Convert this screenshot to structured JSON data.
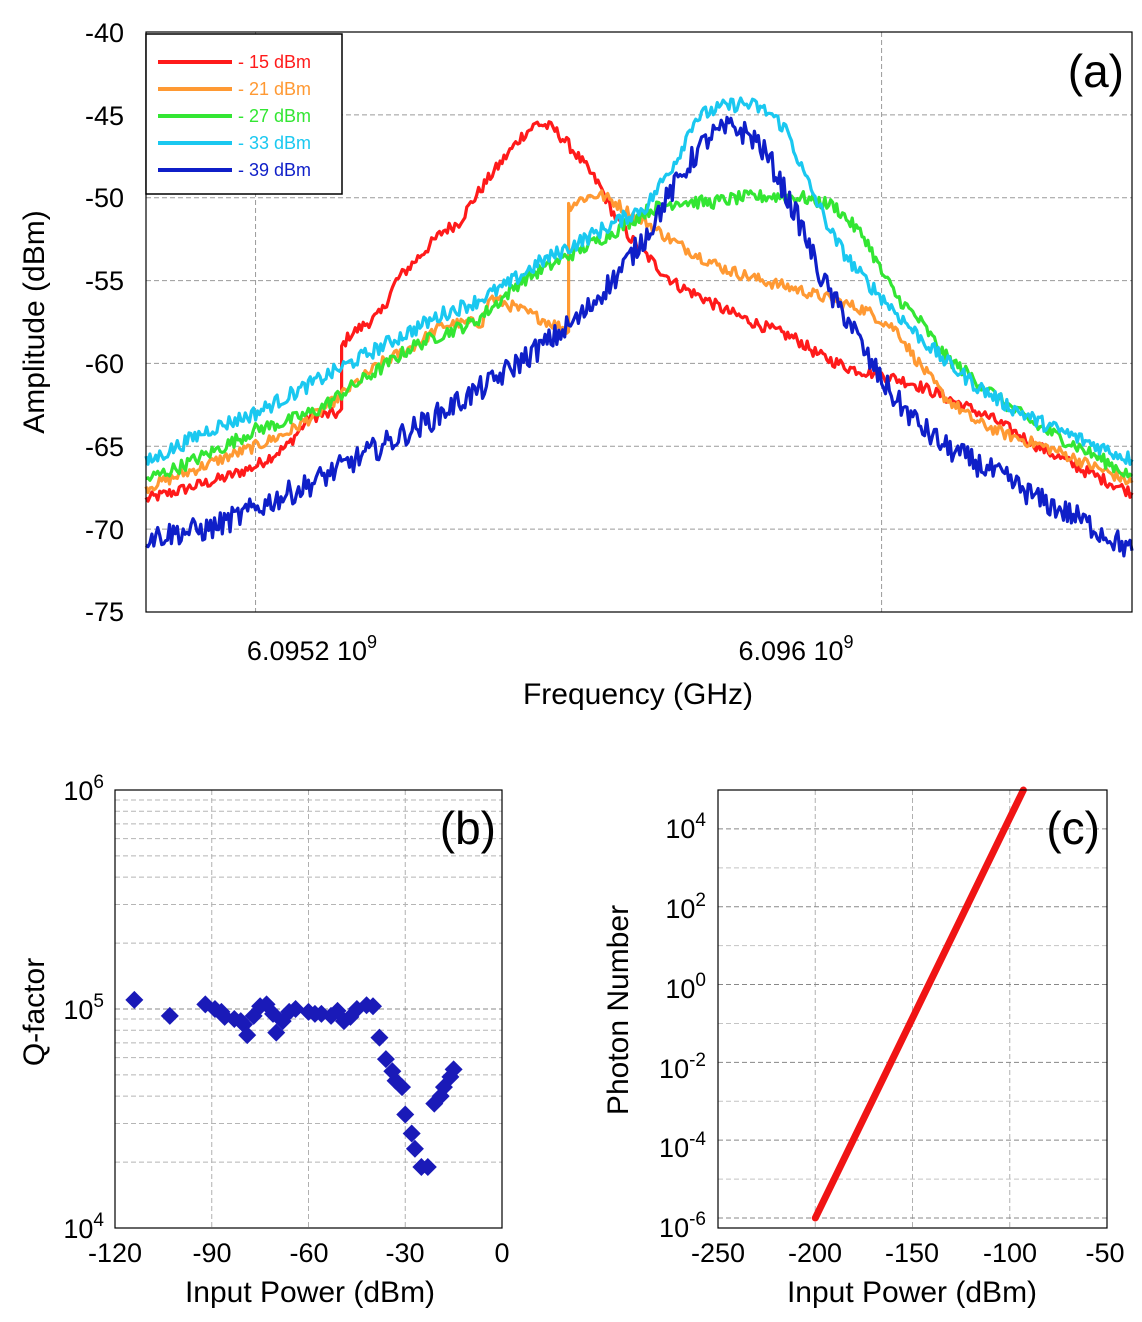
{
  "chart_data": [
    {
      "id": "a",
      "type": "line",
      "panel_label": "(a)",
      "xlabel": "Frequency (GHz)",
      "ylabel": "Amplitude (dBm)",
      "xlim": [
        6.09506,
        6.09632
      ],
      "ylim": [
        -75,
        -40
      ],
      "yticks": [
        -40,
        -45,
        -50,
        -55,
        -60,
        -65,
        -70,
        -75
      ],
      "ytick_labels": [
        "-40",
        "-45",
        "-50",
        "-55",
        "-60",
        "-65",
        "-70",
        "-75"
      ],
      "xticks": [
        {
          "value": 6.0952,
          "label": "6.0952 10",
          "exp": "9"
        },
        {
          "value": 6.096,
          "label": "6.096 10",
          "exp": "9"
        }
      ],
      "legend_position": "top-left",
      "series": [
        {
          "name": "- 15 dBm",
          "color": "#ff1a1a",
          "points": [
            [
              6.09506,
              -68.2
            ],
            [
              6.0951,
              -67.7
            ],
            [
              6.09516,
              -66.9
            ],
            [
              6.0952,
              -66.2
            ],
            [
              6.09524,
              -65
            ],
            [
              6.09527,
              -63.2
            ],
            [
              6.09531,
              -63
            ],
            [
              6.09531,
              -59
            ],
            [
              6.09532,
              -58.3
            ],
            [
              6.09536,
              -57
            ],
            [
              6.09538,
              -55
            ],
            [
              6.09541,
              -53.5
            ],
            [
              6.09544,
              -52
            ],
            [
              6.09546,
              -51.5
            ],
            [
              6.09548,
              -50
            ],
            [
              6.0955,
              -48.7
            ],
            [
              6.09552,
              -47.5
            ],
            [
              6.09554,
              -46.3
            ],
            [
              6.09556,
              -45.5
            ],
            [
              6.09558,
              -45.8
            ],
            [
              6.0956,
              -46.8
            ],
            [
              6.09562,
              -48
            ],
            [
              6.09564,
              -49.3
            ],
            [
              6.09566,
              -51.2
            ],
            [
              6.09568,
              -52.5
            ],
            [
              6.0957,
              -53.5
            ],
            [
              6.09572,
              -54.5
            ],
            [
              6.09574,
              -55.3
            ],
            [
              6.09577,
              -56
            ],
            [
              6.0958,
              -56.8
            ],
            [
              6.09584,
              -57.6
            ],
            [
              6.09589,
              -58.5
            ],
            [
              6.09592,
              -59.5
            ],
            [
              6.09596,
              -60.3
            ],
            [
              6.096,
              -60.7
            ],
            [
              6.09604,
              -61.2
            ],
            [
              6.09608,
              -62
            ],
            [
              6.09614,
              -63.3
            ],
            [
              6.0962,
              -65
            ],
            [
              6.09626,
              -66.5
            ],
            [
              6.09632,
              -67.8
            ]
          ]
        },
        {
          "name": "- 21 dBm",
          "color": "#ff9933",
          "points": [
            [
              6.09506,
              -67.5
            ],
            [
              6.0951,
              -66.8
            ],
            [
              6.09516,
              -65.7
            ],
            [
              6.0952,
              -65
            ],
            [
              6.09524,
              -64.2
            ],
            [
              6.09528,
              -63
            ],
            [
              6.09532,
              -61.5
            ],
            [
              6.09536,
              -60
            ],
            [
              6.0954,
              -59
            ],
            [
              6.09544,
              -57.7
            ],
            [
              6.09549,
              -57.5
            ],
            [
              6.0955,
              -56
            ],
            [
              6.0956,
              -58
            ],
            [
              6.0956,
              -50.5
            ],
            [
              6.09562,
              -50
            ],
            [
              6.09564,
              -49.8
            ],
            [
              6.09566,
              -50.3
            ],
            [
              6.09568,
              -51
            ],
            [
              6.0957,
              -51.5
            ],
            [
              6.09572,
              -52.2
            ],
            [
              6.09574,
              -52.8
            ],
            [
              6.09577,
              -53.6
            ],
            [
              6.0958,
              -54.3
            ],
            [
              6.09584,
              -54.9
            ],
            [
              6.09589,
              -55.5
            ],
            [
              6.09594,
              -56.2
            ],
            [
              6.09598,
              -56.8
            ],
            [
              6.09602,
              -58
            ],
            [
              6.09604,
              -59.5
            ],
            [
              6.09608,
              -62
            ],
            [
              6.09612,
              -63.5
            ],
            [
              6.09616,
              -64.3
            ],
            [
              6.09622,
              -65.2
            ],
            [
              6.09627,
              -66.2
            ],
            [
              6.09632,
              -67.2
            ]
          ]
        },
        {
          "name": "- 27 dBm",
          "color": "#33e633",
          "points": [
            [
              6.09506,
              -67
            ],
            [
              6.0951,
              -66.3
            ],
            [
              6.09516,
              -65
            ],
            [
              6.0952,
              -64
            ],
            [
              6.09524,
              -63.5
            ],
            [
              6.09528,
              -62.8
            ],
            [
              6.09532,
              -61.5
            ],
            [
              6.09536,
              -60.3
            ],
            [
              6.0954,
              -59
            ],
            [
              6.09544,
              -58.2
            ],
            [
              6.09548,
              -57.5
            ],
            [
              6.09551,
              -56.3
            ],
            [
              6.09554,
              -55
            ],
            [
              6.09558,
              -54
            ],
            [
              6.09562,
              -53
            ],
            [
              6.09566,
              -52
            ],
            [
              6.0957,
              -50.8
            ],
            [
              6.09574,
              -50.2
            ],
            [
              6.09578,
              -50.3
            ],
            [
              6.09582,
              -50
            ],
            [
              6.09586,
              -49.9
            ],
            [
              6.0959,
              -50
            ],
            [
              6.09594,
              -50.5
            ],
            [
              6.09596,
              -51.5
            ],
            [
              6.09598,
              -52.5
            ],
            [
              6.096,
              -54.5
            ],
            [
              6.09602,
              -56
            ],
            [
              6.09605,
              -57.5
            ],
            [
              6.09608,
              -59.5
            ],
            [
              6.09612,
              -61
            ],
            [
              6.09616,
              -62.5
            ],
            [
              6.0962,
              -63.8
            ],
            [
              6.09625,
              -65
            ],
            [
              6.09632,
              -66.8
            ]
          ]
        },
        {
          "name": "- 33 dBm",
          "color": "#1ac8f0",
          "points": [
            [
              6.09506,
              -66
            ],
            [
              6.0951,
              -65
            ],
            [
              6.09514,
              -64
            ],
            [
              6.0952,
              -63
            ],
            [
              6.09524,
              -62
            ],
            [
              6.09528,
              -61
            ],
            [
              6.09532,
              -60
            ],
            [
              6.09536,
              -59
            ],
            [
              6.0954,
              -58
            ],
            [
              6.09544,
              -57
            ],
            [
              6.09548,
              -56.3
            ],
            [
              6.09552,
              -55.3
            ],
            [
              6.09556,
              -54
            ],
            [
              6.0956,
              -53
            ],
            [
              6.09564,
              -52
            ],
            [
              6.09568,
              -51
            ],
            [
              6.0957,
              -50.5
            ],
            [
              6.09572,
              -49
            ],
            [
              6.09574,
              -47.5
            ],
            [
              6.09576,
              -45.3
            ],
            [
              6.09578,
              -44.8
            ],
            [
              6.0958,
              -44.5
            ],
            [
              6.09582,
              -44.3
            ],
            [
              6.09584,
              -44.5
            ],
            [
              6.09586,
              -45
            ],
            [
              6.09588,
              -46
            ],
            [
              6.0959,
              -48.5
            ],
            [
              6.09592,
              -50.5
            ],
            [
              6.09594,
              -52.5
            ],
            [
              6.09597,
              -54.5
            ],
            [
              6.096,
              -56
            ],
            [
              6.09604,
              -58
            ],
            [
              6.09608,
              -59.8
            ],
            [
              6.09612,
              -61.3
            ],
            [
              6.09616,
              -62.5
            ],
            [
              6.0962,
              -63.5
            ],
            [
              6.09625,
              -64.5
            ],
            [
              6.09632,
              -65.8
            ]
          ]
        },
        {
          "name": "- 39 dBm",
          "color": "#0f1fc8",
          "points": [
            [
              6.09506,
              -70.5
            ],
            [
              6.0951,
              -70.2
            ],
            [
              6.09514,
              -70
            ],
            [
              6.09518,
              -69.2
            ],
            [
              6.09522,
              -68.3
            ],
            [
              6.09526,
              -67.5
            ],
            [
              6.0953,
              -66.5
            ],
            [
              6.09534,
              -65.5
            ],
            [
              6.09538,
              -64.5
            ],
            [
              6.09542,
              -63.5
            ],
            [
              6.09546,
              -62.3
            ],
            [
              6.0955,
              -61.2
            ],
            [
              6.09554,
              -59.8
            ],
            [
              6.09558,
              -58.5
            ],
            [
              6.09562,
              -57
            ],
            [
              6.09564,
              -55.8
            ],
            [
              6.09566,
              -54.8
            ],
            [
              6.09568,
              -53.5
            ],
            [
              6.0957,
              -52.2
            ],
            [
              6.09572,
              -50.5
            ],
            [
              6.09574,
              -49
            ],
            [
              6.09576,
              -47.5
            ],
            [
              6.09578,
              -46.3
            ],
            [
              6.09581,
              -45.7
            ],
            [
              6.09584,
              -46.5
            ],
            [
              6.09586,
              -48
            ],
            [
              6.09588,
              -50
            ],
            [
              6.0959,
              -52
            ],
            [
              6.09592,
              -54.5
            ],
            [
              6.09594,
              -56.3
            ],
            [
              6.09596,
              -57.5
            ],
            [
              6.09598,
              -59.5
            ],
            [
              6.096,
              -61
            ],
            [
              6.09602,
              -62.3
            ],
            [
              6.09605,
              -63.8
            ],
            [
              6.09608,
              -65
            ],
            [
              6.09612,
              -66
            ],
            [
              6.09616,
              -67
            ],
            [
              6.0962,
              -68.2
            ],
            [
              6.09625,
              -69.3
            ],
            [
              6.09632,
              -71.3
            ]
          ]
        }
      ]
    },
    {
      "id": "b",
      "type": "scatter",
      "panel_label": "(b)",
      "xlabel": "Input Power (dBm)",
      "ylabel": "Q-factor",
      "xlim": [
        -120,
        0
      ],
      "xticks": [
        -120,
        -90,
        -60,
        -30,
        0
      ],
      "xtick_labels": [
        "-120",
        "-90",
        "-60",
        "-30",
        "0"
      ],
      "ylim": [
        10000,
        1000000
      ],
      "yscale": "log",
      "ytick_labels": [
        {
          "value": 1000000,
          "base": "10",
          "exp": "6"
        },
        {
          "value": 100000,
          "base": "10",
          "exp": "5"
        },
        {
          "value": 10000,
          "base": "10",
          "exp": "4"
        }
      ],
      "marker_color": "#1a1ab8",
      "points": [
        [
          -114,
          110000
        ],
        [
          -103,
          93000
        ],
        [
          -92,
          105000
        ],
        [
          -89,
          100000
        ],
        [
          -87,
          97000
        ],
        [
          -86,
          92000
        ],
        [
          -83,
          90000
        ],
        [
          -81,
          88000
        ],
        [
          -80,
          85000
        ],
        [
          -79,
          76000
        ],
        [
          -77,
          93000
        ],
        [
          -75,
          103000
        ],
        [
          -73,
          105000
        ],
        [
          -71,
          95000
        ],
        [
          -70,
          78000
        ],
        [
          -68,
          88000
        ],
        [
          -66,
          97000
        ],
        [
          -64,
          100000
        ],
        [
          -60,
          97000
        ],
        [
          -58,
          95000
        ],
        [
          -56,
          95000
        ],
        [
          -53,
          93000
        ],
        [
          -51,
          98000
        ],
        [
          -49,
          88000
        ],
        [
          -47,
          92000
        ],
        [
          -45,
          100000
        ],
        [
          -42,
          104000
        ],
        [
          -40,
          103000
        ],
        [
          -38,
          74000
        ],
        [
          -36,
          59000
        ],
        [
          -34,
          52000
        ],
        [
          -33,
          47000
        ],
        [
          -31,
          44000
        ],
        [
          -30,
          33000
        ],
        [
          -28,
          27000
        ],
        [
          -27,
          23000
        ],
        [
          -25,
          19000
        ],
        [
          -23,
          19000
        ],
        [
          -21,
          37000
        ],
        [
          -19,
          40000
        ],
        [
          -18,
          44000
        ],
        [
          -16,
          49000
        ],
        [
          -15,
          53000
        ]
      ]
    },
    {
      "id": "c",
      "type": "line",
      "panel_label": "(c)",
      "xlabel": "Input Power (dBm)",
      "ylabel": "Photon Number",
      "xlim": [
        -250,
        -50
      ],
      "xticks": [
        -250,
        -200,
        -150,
        -100,
        -50
      ],
      "xtick_labels": [
        "-250",
        "-200",
        "-150",
        "-100",
        "-50"
      ],
      "ylim": [
        1e-06,
        100000
      ],
      "yscale": "log",
      "ytick_labels": [
        {
          "value": 10000,
          "base": "10",
          "exp": "4"
        },
        {
          "value": 100,
          "base": "10",
          "exp": "2"
        },
        {
          "value": 1,
          "base": "10",
          "exp": "0"
        },
        {
          "value": 0.01,
          "base": "10",
          "exp": "-2"
        },
        {
          "value": 0.0001,
          "base": "10",
          "exp": "-4"
        },
        {
          "value": 1e-06,
          "base": "10",
          "exp": "-6"
        }
      ],
      "line_color": "#f01414",
      "series": [
        {
          "name": "photon number",
          "points": [
            [
              -200,
              1e-06
            ],
            [
              -93,
              100000
            ]
          ]
        }
      ]
    }
  ]
}
